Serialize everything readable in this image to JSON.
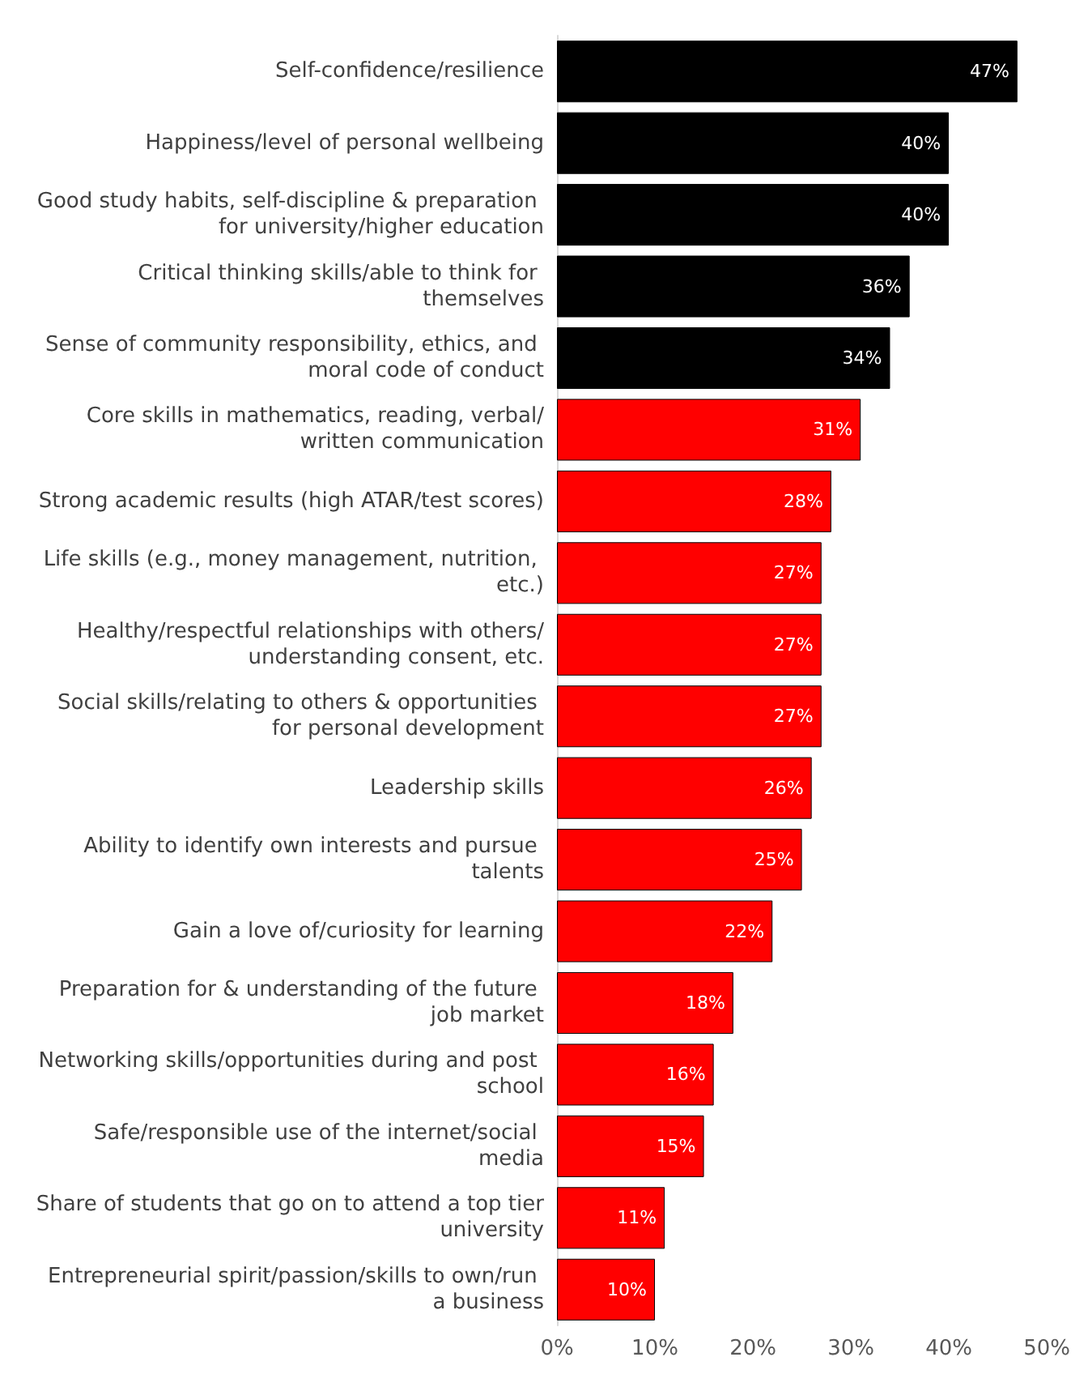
{
  "chart_data": {
    "type": "bar",
    "orientation": "horizontal",
    "categories": [
      "Self-confidence/resilience",
      "Happiness/level of personal wellbeing",
      "Good study habits, self-discipline & preparation for university/higher education",
      "Critical thinking skills/able to think for themselves",
      "Sense of community responsibility, ethics, and moral code of conduct",
      "Core skills in mathematics, reading, verbal/written communication",
      "Strong academic results (high ATAR/test scores)",
      "Life skills (e.g., money management, nutrition, etc.)",
      "Healthy/respectful relationships with others/understanding consent, etc.",
      "Social skills/relating to others & opportunities for personal development",
      "Leadership skills",
      "Ability to identify own interests and pursue talents",
      "Gain a love of/curiosity for learning",
      "Preparation for & understanding of the future job market",
      "Networking skills/opportunities during and post school",
      "Safe/responsible use of the internet/social media",
      "Share of students that go on to attend a top tier university",
      "Entrepreneurial spirit/passion/skills to own/run a business"
    ],
    "values": [
      47,
      40,
      40,
      36,
      34,
      31,
      28,
      27,
      27,
      27,
      26,
      25,
      22,
      18,
      16,
      15,
      11,
      10
    ],
    "value_labels": [
      "47%",
      "40%",
      "40%",
      "36%",
      "34%",
      "31%",
      "28%",
      "27%",
      "27%",
      "27%",
      "26%",
      "25%",
      "22%",
      "18%",
      "16%",
      "15%",
      "11%",
      "10%"
    ],
    "colors": [
      "#000000",
      "#000000",
      "#000000",
      "#000000",
      "#000000",
      "#ff0000",
      "#ff0000",
      "#ff0000",
      "#ff0000",
      "#ff0000",
      "#ff0000",
      "#ff0000",
      "#ff0000",
      "#ff0000",
      "#ff0000",
      "#ff0000",
      "#ff0000",
      "#ff0000"
    ],
    "xlim": [
      0,
      50
    ],
    "xticks": [
      {
        "value": 0,
        "label": "0%"
      },
      {
        "value": 10,
        "label": "10%"
      },
      {
        "value": 20,
        "label": "20%"
      },
      {
        "value": 30,
        "label": "30%"
      },
      {
        "value": 40,
        "label": "40%"
      },
      {
        "value": 50,
        "label": "50%"
      }
    ],
    "grid": false
  }
}
